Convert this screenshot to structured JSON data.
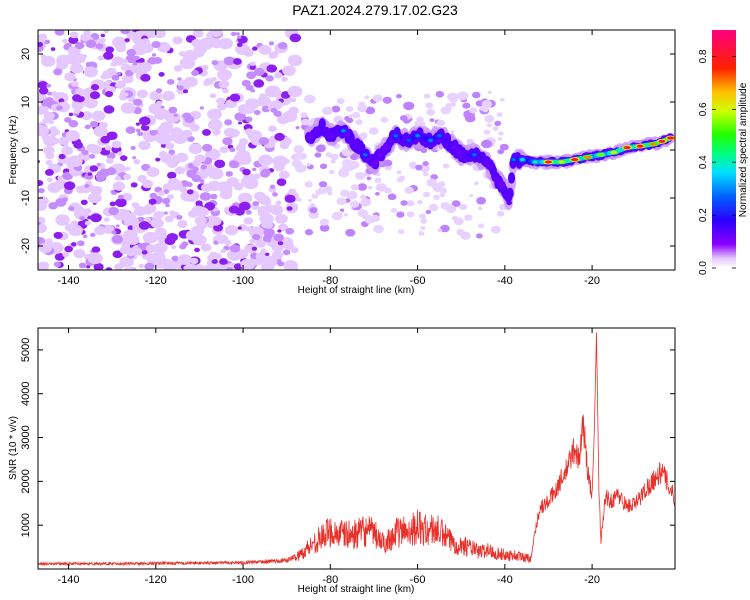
{
  "figure": {
    "title": "PAZ1.2024.279.17.02.G23"
  },
  "chart_data": [
    {
      "type": "heatmap",
      "panel": "spectrogram",
      "xlabel": "Height of straight line (km)",
      "ylabel": "Frequency (Hz)",
      "xlim": [
        -147,
        -1
      ],
      "ylim": [
        -25,
        25
      ],
      "x_ticks": [
        -140,
        -120,
        -100,
        -80,
        -60,
        -40,
        -20
      ],
      "y_ticks": [
        -20,
        -10,
        0,
        10,
        20
      ],
      "x_tick_labels": [
        "-140",
        "-120",
        "-100",
        "-80",
        "-60",
        "-40",
        "-20"
      ],
      "y_tick_labels": [
        "-20",
        "-10",
        "0",
        "10",
        "20"
      ],
      "colorbar": {
        "label": "Normalized spectral amplitude",
        "range": [
          0.0,
          0.9
        ],
        "ticks": [
          0.0,
          0.2,
          0.4,
          0.6,
          0.8
        ],
        "tick_labels": [
          "0.0",
          "0.2",
          "0.4",
          "0.6",
          "0.8"
        ],
        "colormap": "rainbow (violet-blue-cyan-green-yellow-red-magenta)"
      },
      "noise_region_x": [
        -147,
        -88
      ],
      "signal_ridge": [
        {
          "x": -85,
          "y": 2.5,
          "amp": 0.2
        },
        {
          "x": -82,
          "y": 5,
          "amp": 0.2
        },
        {
          "x": -80,
          "y": 3,
          "amp": 0.22
        },
        {
          "x": -77,
          "y": 4,
          "amp": 0.3
        },
        {
          "x": -75,
          "y": 2,
          "amp": 0.24
        },
        {
          "x": -72,
          "y": -1,
          "amp": 0.28
        },
        {
          "x": -70,
          "y": -3,
          "amp": 0.22
        },
        {
          "x": -67,
          "y": 1,
          "amp": 0.22
        },
        {
          "x": -65,
          "y": 3,
          "amp": 0.28
        },
        {
          "x": -62,
          "y": 2,
          "amp": 0.26
        },
        {
          "x": -60,
          "y": 3,
          "amp": 0.3
        },
        {
          "x": -57,
          "y": 2,
          "amp": 0.3
        },
        {
          "x": -55,
          "y": 3,
          "amp": 0.28
        },
        {
          "x": -52,
          "y": 1,
          "amp": 0.24
        },
        {
          "x": -50,
          "y": -1,
          "amp": 0.24
        },
        {
          "x": -47,
          "y": -1,
          "amp": 0.28
        },
        {
          "x": -45,
          "y": -2,
          "amp": 0.24
        },
        {
          "x": -43,
          "y": -4,
          "amp": 0.2
        },
        {
          "x": -42,
          "y": -6,
          "amp": 0.22
        },
        {
          "x": -40,
          "y": -8,
          "amp": 0.22
        },
        {
          "x": -39,
          "y": -11,
          "amp": 0.22
        },
        {
          "x": -38,
          "y": -2,
          "amp": 0.28
        },
        {
          "x": -36,
          "y": -2,
          "amp": 0.38
        },
        {
          "x": -33,
          "y": -2.5,
          "amp": 0.42
        },
        {
          "x": -30,
          "y": -2.5,
          "amp": 0.82
        },
        {
          "x": -27,
          "y": -2.5,
          "amp": 0.6
        },
        {
          "x": -24,
          "y": -2,
          "amp": 0.82
        },
        {
          "x": -21,
          "y": -1.5,
          "amp": 0.7
        },
        {
          "x": -18,
          "y": -1,
          "amp": 0.55
        },
        {
          "x": -15,
          "y": -0.5,
          "amp": 0.6
        },
        {
          "x": -12,
          "y": 0.5,
          "amp": 0.82
        },
        {
          "x": -9,
          "y": 0.8,
          "amp": 0.82
        },
        {
          "x": -6,
          "y": 1.2,
          "amp": 0.7
        },
        {
          "x": -4,
          "y": 1.8,
          "amp": 0.8
        },
        {
          "x": -2,
          "y": 2.5,
          "amp": 0.85
        }
      ]
    },
    {
      "type": "line",
      "panel": "snr",
      "xlabel": "Height of straight line (km)",
      "ylabel": "SNR (10 * v/v)",
      "xlim": [
        -147,
        -1
      ],
      "ylim": [
        0,
        5500
      ],
      "x_ticks": [
        -140,
        -120,
        -100,
        -80,
        -60,
        -40,
        -20
      ],
      "y_ticks": [
        1000,
        2000,
        3000,
        4000,
        5000
      ],
      "x_tick_labels": [
        "-140",
        "-120",
        "-100",
        "-80",
        "-60",
        "-40",
        "-20"
      ],
      "y_tick_labels": [
        "1000",
        "2000",
        "3000",
        "4000",
        "5000"
      ],
      "color": "#e8302a",
      "series": [
        {
          "x": [
            -147,
            -120,
            -100,
            -90,
            -87,
            -84,
            -82,
            -80,
            -78,
            -75,
            -72,
            -70,
            -68,
            -65,
            -62,
            -60,
            -58,
            -56,
            -54,
            -52,
            -50,
            -48,
            -46,
            -44,
            -42,
            -40,
            -38,
            -36,
            -34,
            -33,
            -32,
            -30,
            -28,
            -26,
            -24,
            -23,
            -22,
            -21,
            -20,
            -19.5,
            -19,
            -18.5,
            -18,
            -17,
            -16,
            -14,
            -12,
            -10,
            -8,
            -6,
            -4,
            -2,
            -1
          ],
          "y": [
            120,
            130,
            150,
            200,
            330,
            600,
            750,
            900,
            830,
            800,
            900,
            850,
            600,
            850,
            930,
            1000,
            900,
            950,
            800,
            620,
            560,
            520,
            400,
            450,
            380,
            330,
            330,
            280,
            260,
            900,
            1400,
            1550,
            1900,
            2250,
            2800,
            2500,
            3400,
            2200,
            1700,
            3100,
            5400,
            2200,
            600,
            1700,
            1550,
            1700,
            1450,
            1500,
            1800,
            2050,
            2250,
            1850,
            1600
          ]
        }
      ]
    }
  ]
}
